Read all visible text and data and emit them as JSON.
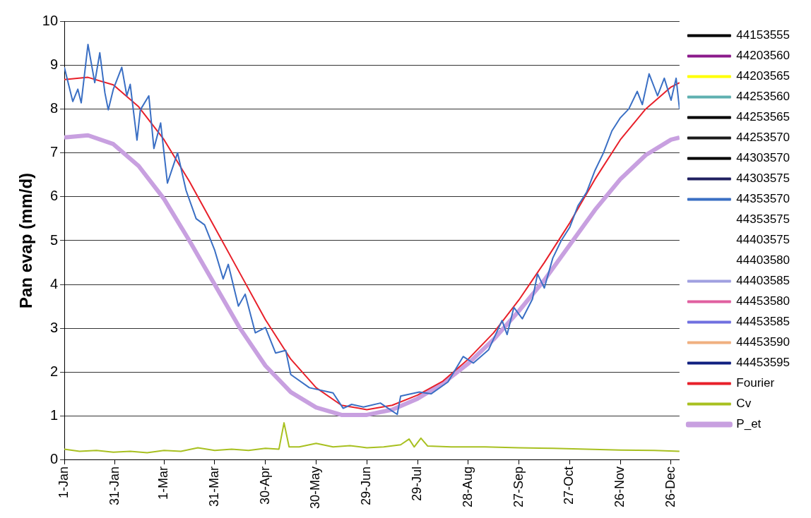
{
  "chart_data": {
    "type": "line",
    "ylabel": "Pan evap (mm/d)",
    "xlim": [
      "--01-01",
      "--12-31"
    ],
    "xticks": [
      {
        "value": "--01-01",
        "label": "1-Jan"
      },
      {
        "value": "--01-31",
        "label": "31-Jan"
      },
      {
        "value": "--03-01",
        "label": "1-Mar"
      },
      {
        "value": "--03-31",
        "label": "31-Mar"
      },
      {
        "value": "--04-30",
        "label": "30-Apr"
      },
      {
        "value": "--05-30",
        "label": "30-May"
      },
      {
        "value": "--06-29",
        "label": "29-Jun"
      },
      {
        "value": "--07-29",
        "label": "29-Jul"
      },
      {
        "value": "--08-28",
        "label": "28-Aug"
      },
      {
        "value": "--09-27",
        "label": "27-Sep"
      },
      {
        "value": "--10-27",
        "label": "27-Oct"
      },
      {
        "value": "--11-26",
        "label": "26-Nov"
      },
      {
        "value": "--12-26",
        "label": "26-Dec"
      }
    ],
    "ylim": [
      0,
      10
    ],
    "yticks": [
      0,
      1,
      2,
      3,
      4,
      5,
      6,
      7,
      8,
      9,
      10
    ],
    "grid": "y",
    "legend": "right",
    "marker": "none",
    "series": [
      {
        "name": "44153555",
        "color": "#000000"
      },
      {
        "name": "44203560",
        "color": "#8b1a8b"
      },
      {
        "name": "44203565",
        "color": "#ffff00"
      },
      {
        "name": "44253560",
        "color": "#5fb0b0"
      },
      {
        "name": "44253565",
        "color": "#000000"
      },
      {
        "name": "44253570",
        "color": "#1a1a1a"
      },
      {
        "name": "44303570",
        "color": "#000000"
      },
      {
        "name": "44303575",
        "color": "#202060"
      },
      {
        "name": "44353570",
        "color": "#3a6fc4",
        "x": [
          "--01-01",
          "--01-06",
          "--01-09",
          "--01-11",
          "--01-15",
          "--01-19",
          "--01-22",
          "--01-25",
          "--01-27",
          "--01-30",
          "--02-04",
          "--02-07",
          "--02-09",
          "--02-13",
          "--02-15",
          "--02-20",
          "--02-23",
          "--02-27",
          "--03-03",
          "--03-09",
          "--03-14",
          "--03-20",
          "--03-25",
          "--03-31",
          "--04-05",
          "--04-08",
          "--04-14",
          "--04-18",
          "--04-24",
          "--04-30",
          "--05-06",
          "--05-12",
          "--05-15",
          "--05-26",
          "--06-09",
          "--06-15",
          "--06-20",
          "--06-27",
          "--07-07",
          "--07-17",
          "--07-19",
          "--07-30",
          "--08-06",
          "--08-16",
          "--08-25",
          "--08-31",
          "--09-09",
          "--09-17",
          "--09-20",
          "--09-24",
          "--09-29",
          "--10-05",
          "--10-08",
          "--10-12",
          "--10-17",
          "--10-22",
          "--10-27",
          "--11-01",
          "--11-06",
          "--11-11",
          "--11-16",
          "--11-21",
          "--11-26",
          "--12-01",
          "--12-06",
          "--12-09",
          "--12-13",
          "--12-18",
          "--12-22",
          "--12-26",
          "--12-29",
          "--12-31"
        ],
        "values": [
          8.95,
          8.17,
          8.45,
          8.14,
          9.47,
          8.6,
          9.28,
          8.37,
          7.98,
          8.45,
          8.95,
          8.3,
          8.56,
          7.29,
          7.98,
          8.3,
          7.1,
          7.68,
          6.31,
          7.0,
          6.15,
          5.5,
          5.36,
          4.78,
          4.13,
          4.46,
          3.51,
          3.78,
          2.9,
          3.02,
          2.44,
          2.5,
          1.95,
          1.65,
          1.53,
          1.18,
          1.27,
          1.21,
          1.3,
          1.04,
          1.46,
          1.55,
          1.51,
          1.78,
          2.36,
          2.21,
          2.51,
          3.18,
          2.86,
          3.48,
          3.22,
          3.67,
          4.24,
          3.92,
          4.6,
          5.0,
          5.3,
          5.8,
          6.1,
          6.6,
          7.0,
          7.5,
          7.8,
          8.0,
          8.4,
          8.1,
          8.8,
          8.3,
          8.7,
          8.2,
          8.7,
          8.0
        ]
      },
      {
        "name": "44353575"
      },
      {
        "name": "44403575"
      },
      {
        "name": "44403580"
      },
      {
        "name": "44403585",
        "color": "#a0a0e0"
      },
      {
        "name": "44453580",
        "color": "#e060a0"
      },
      {
        "name": "44453585",
        "color": "#7070e0"
      },
      {
        "name": "44453590",
        "color": "#f0b080"
      },
      {
        "name": "44453595",
        "color": "#102080"
      },
      {
        "name": "Fourier",
        "color": "#e8202a",
        "x": [
          "--01-01",
          "--01-15",
          "--01-30",
          "--02-14",
          "--03-01",
          "--03-16",
          "--03-31",
          "--04-15",
          "--04-30",
          "--05-15",
          "--05-30",
          "--06-14",
          "--06-29",
          "--07-14",
          "--07-29",
          "--08-13",
          "--08-28",
          "--09-12",
          "--09-27",
          "--10-12",
          "--10-27",
          "--11-11",
          "--11-26",
          "--12-11",
          "--12-26",
          "--12-31"
        ],
        "values": [
          8.67,
          8.72,
          8.55,
          8.05,
          7.3,
          6.35,
          5.3,
          4.25,
          3.2,
          2.3,
          1.65,
          1.25,
          1.15,
          1.25,
          1.48,
          1.8,
          2.3,
          2.9,
          3.65,
          4.5,
          5.4,
          6.4,
          7.3,
          8.0,
          8.5,
          8.6
        ]
      },
      {
        "name": "Cv",
        "color": "#a8c020",
        "x": [
          "--01-01",
          "--01-10",
          "--01-20",
          "--01-30",
          "--02-09",
          "--02-19",
          "--03-01",
          "--03-11",
          "--03-21",
          "--03-31",
          "--04-10",
          "--04-20",
          "--04-30",
          "--05-08",
          "--05-11",
          "--05-14",
          "--05-20",
          "--05-30",
          "--06-09",
          "--06-19",
          "--06-29",
          "--07-09",
          "--07-19",
          "--07-24",
          "--07-27",
          "--07-31",
          "--08-04",
          "--08-18",
          "--09-07",
          "--09-27",
          "--10-17",
          "--11-06",
          "--11-26",
          "--12-16",
          "--12-31"
        ],
        "values": [
          0.25,
          0.2,
          0.22,
          0.18,
          0.2,
          0.17,
          0.22,
          0.2,
          0.28,
          0.22,
          0.25,
          0.22,
          0.27,
          0.25,
          0.85,
          0.3,
          0.3,
          0.38,
          0.3,
          0.33,
          0.28,
          0.3,
          0.35,
          0.48,
          0.3,
          0.5,
          0.32,
          0.3,
          0.3,
          0.28,
          0.27,
          0.25,
          0.23,
          0.22,
          0.2
        ]
      },
      {
        "name": "P_et",
        "color": "#c8a0e0",
        "x": [
          "--01-01",
          "--01-15",
          "--01-30",
          "--02-14",
          "--03-01",
          "--03-16",
          "--03-31",
          "--04-15",
          "--04-30",
          "--05-15",
          "--05-30",
          "--06-14",
          "--06-29",
          "--07-14",
          "--07-29",
          "--08-13",
          "--08-28",
          "--09-12",
          "--09-27",
          "--10-12",
          "--10-27",
          "--11-11",
          "--11-26",
          "--12-11",
          "--12-26",
          "--12-31"
        ],
        "values": [
          7.35,
          7.4,
          7.2,
          6.7,
          5.95,
          5.0,
          4.0,
          3.0,
          2.15,
          1.55,
          1.2,
          1.03,
          1.03,
          1.15,
          1.4,
          1.75,
          2.2,
          2.75,
          3.4,
          4.1,
          4.9,
          5.7,
          6.4,
          6.95,
          7.3,
          7.35
        ]
      }
    ]
  }
}
